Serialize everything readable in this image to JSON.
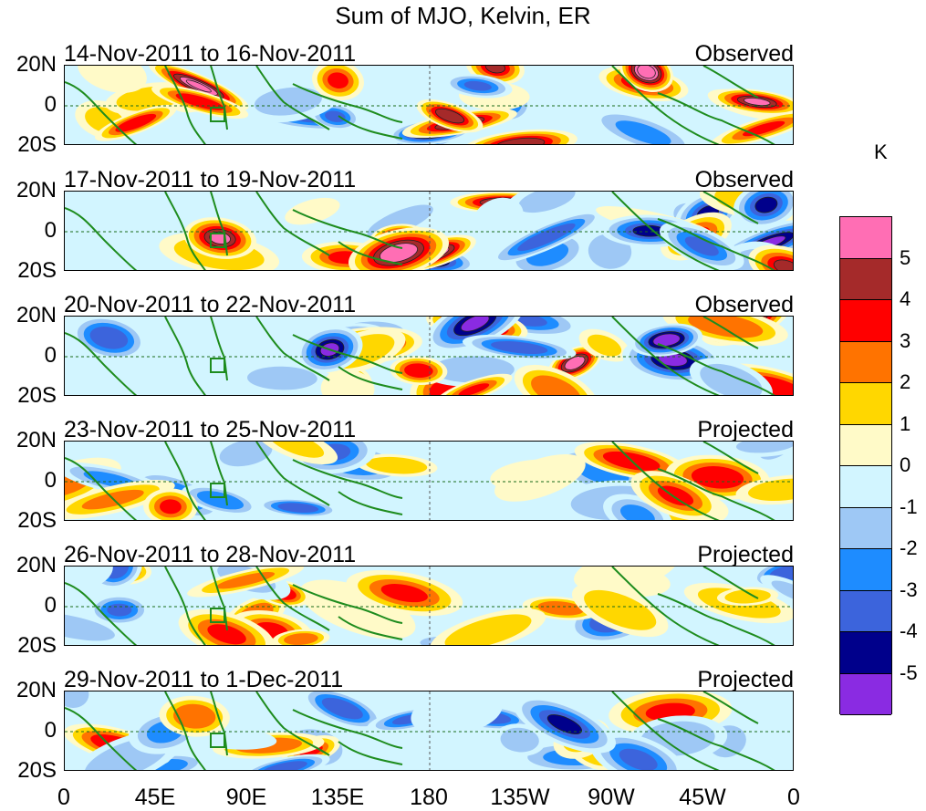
{
  "title": "Sum of MJO, Kelvin, ER",
  "panels": [
    {
      "date": "14-Nov-2011 to 16-Nov-2011",
      "kind": "Observed"
    },
    {
      "date": "17-Nov-2011 to 19-Nov-2011",
      "kind": "Observed"
    },
    {
      "date": "20-Nov-2011 to 22-Nov-2011",
      "kind": "Observed"
    },
    {
      "date": "23-Nov-2011 to 25-Nov-2011",
      "kind": "Projected"
    },
    {
      "date": "26-Nov-2011 to 28-Nov-2011",
      "kind": "Projected"
    },
    {
      "date": "29-Nov-2011 to 1-Dec-2011",
      "kind": "Projected"
    }
  ],
  "lat_labels": [
    "20N",
    "0",
    "20S"
  ],
  "lon_labels": [
    "0",
    "45E",
    "90E",
    "135E",
    "180",
    "135W",
    "90W",
    "45W",
    "0"
  ],
  "colorbar": {
    "unit": "K",
    "labels": [
      "5",
      "4",
      "3",
      "2",
      "1",
      "0",
      "-1",
      "-2",
      "-3",
      "-4",
      "-5"
    ],
    "colors": [
      "#ff6eb4",
      "#a52a2a",
      "#ff0000",
      "#ff7300",
      "#ffd700",
      "#fffac8",
      "#d2f5ff",
      "#9ec8f5",
      "#1e8cff",
      "#3c64dc",
      "#00008b",
      "#8a2be2"
    ]
  }
}
